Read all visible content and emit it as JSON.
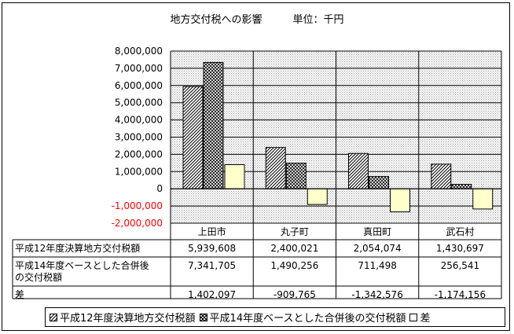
{
  "chart_data": {
    "type": "bar",
    "title": "地方交付税への影響　　　単位：千円",
    "categories": [
      "上田市",
      "丸子町",
      "真田町",
      "武石村"
    ],
    "series": [
      {
        "name": "平成12年度決算地方交付税額",
        "values": [
          5939608,
          2400021,
          2054074,
          1430697
        ],
        "value_labels": [
          "5,939,608",
          "2,400,021",
          "2,054,074",
          "1,430,697"
        ],
        "pattern": "diagonal-hatch"
      },
      {
        "name": "平成14年度ベースとした合併後の交付税額",
        "values": [
          7341705,
          1490256,
          711498,
          256541
        ],
        "value_labels": [
          "7,341,705",
          "1,490,256",
          "711,498",
          "256,541"
        ],
        "pattern": "cross-hatch"
      },
      {
        "name": "差",
        "values": [
          1402097,
          -909765,
          -1342576,
          -1174156
        ],
        "value_labels": [
          "1,402,097",
          "-909,765",
          "-1,342,576",
          "-1,174,156"
        ],
        "fill": "#ffffcc"
      }
    ],
    "table_row_labels": [
      "平成12年度決算地方交付税額",
      "平成14年度ベースとした合併後\nの交付税額",
      "差"
    ],
    "y_ticks": [
      "8,000,000",
      "7,000,000",
      "6,000,000",
      "5,000,000",
      "4,000,000",
      "3,000,000",
      "2,000,000",
      "1,000,000",
      "0",
      "-1,000,000",
      "-2,000,000"
    ],
    "negative_tick_color": "#ff0000",
    "ylim": [
      -2000000,
      8000000
    ],
    "plot_background": "dotted-gray",
    "grid": true,
    "legend": {
      "position": "bottom",
      "items": [
        "平成12年度決算地方交付税額",
        "平成14年度ベースとした合併後の交付税額",
        "差"
      ]
    }
  }
}
